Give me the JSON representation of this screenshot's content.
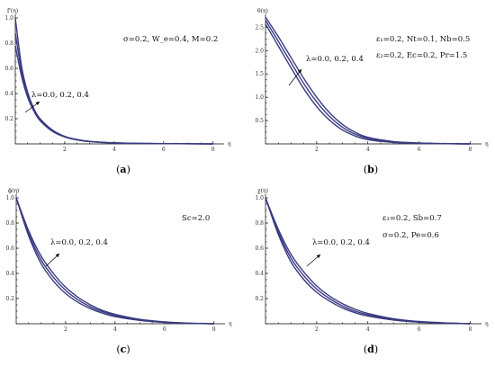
{
  "colors": {
    "curve": "#3a3a82",
    "axis": "#000000"
  },
  "chart_data": [
    {
      "id": "a",
      "type": "line",
      "letter": "a",
      "ylabel": "f'(η)",
      "xlabel": "η",
      "xlim": [
        0,
        8.3
      ],
      "ylim": [
        0,
        1.0
      ],
      "xticks": [
        2,
        4,
        6,
        8
      ],
      "yticks": [
        0.2,
        0.4,
        0.6,
        0.8,
        1.0
      ],
      "ytick_labels": [
        "0.2",
        "0.4",
        "0.6",
        "0.8",
        "1.0"
      ],
      "annotations": [
        "σ=0.2, W_e=0.4, M=0.2"
      ],
      "lambda_label": "λ=0.0, 0.2, 0.4",
      "series": [
        {
          "x": [
            0,
            0.25,
            0.5,
            0.75,
            1,
            1.5,
            2,
            2.5,
            3,
            4,
            5,
            6,
            7,
            8
          ],
          "values": [
            1.0,
            0.62,
            0.41,
            0.28,
            0.2,
            0.11,
            0.06,
            0.035,
            0.02,
            0.008,
            0.004,
            0.002,
            0.001,
            0.0
          ]
        },
        {
          "x": [
            0,
            0.25,
            0.5,
            0.75,
            1,
            1.5,
            2,
            2.5,
            3,
            4,
            5,
            6,
            7,
            8
          ],
          "values": [
            0.88,
            0.58,
            0.39,
            0.27,
            0.19,
            0.105,
            0.058,
            0.033,
            0.019,
            0.008,
            0.004,
            0.002,
            0.001,
            0.0
          ]
        },
        {
          "x": [
            0,
            0.25,
            0.5,
            0.75,
            1,
            1.5,
            2,
            2.5,
            3,
            4,
            5,
            6,
            7,
            8
          ],
          "values": [
            0.78,
            0.54,
            0.37,
            0.26,
            0.185,
            0.1,
            0.055,
            0.031,
            0.018,
            0.007,
            0.003,
            0.0015,
            0.0008,
            0.0
          ]
        }
      ]
    },
    {
      "id": "b",
      "type": "line",
      "letter": "b",
      "ylabel": "θ(η)",
      "xlabel": "η",
      "xlim": [
        0,
        8.3
      ],
      "ylim": [
        0,
        2.7
      ],
      "xticks": [
        2,
        4,
        6,
        8
      ],
      "yticks": [
        0.5,
        1.0,
        1.5,
        2.0,
        2.5
      ],
      "ytick_labels": [
        "0.5",
        "1.0",
        "1.5",
        "2.0",
        "2.5"
      ],
      "annotations": [
        "ε₁=0.2, Nt=0.1, Nb=0.5",
        "ε₂=0.2, Ec=0.2, Pr=1.5"
      ],
      "lambda_label": "λ=0.0, 0.2, 0.4",
      "series": [
        {
          "x": [
            0,
            0.5,
            1,
            1.5,
            2,
            2.5,
            3,
            3.5,
            4,
            5,
            6,
            7,
            8
          ],
          "values": [
            2.72,
            2.3,
            1.85,
            1.4,
            1.0,
            0.67,
            0.42,
            0.25,
            0.14,
            0.05,
            0.02,
            0.006,
            0.0
          ]
        },
        {
          "x": [
            0,
            0.5,
            1,
            1.5,
            2,
            2.5,
            3,
            3.5,
            4,
            5,
            6,
            7,
            8
          ],
          "values": [
            2.65,
            2.2,
            1.74,
            1.29,
            0.9,
            0.59,
            0.36,
            0.21,
            0.12,
            0.04,
            0.015,
            0.005,
            0.0
          ]
        },
        {
          "x": [
            0,
            0.5,
            1,
            1.5,
            2,
            2.5,
            3,
            3.5,
            4,
            5,
            6,
            7,
            8
          ],
          "values": [
            2.57,
            2.1,
            1.63,
            1.18,
            0.8,
            0.51,
            0.3,
            0.17,
            0.09,
            0.03,
            0.01,
            0.004,
            0.0
          ]
        }
      ]
    },
    {
      "id": "c",
      "type": "line",
      "letter": "c",
      "ylabel": "ϕ(η)",
      "xlabel": "η",
      "xlim": [
        0,
        8.3
      ],
      "ylim": [
        0,
        1.0
      ],
      "xticks": [
        2,
        4,
        6,
        8
      ],
      "yticks": [
        0.2,
        0.4,
        0.6,
        0.8,
        1.0
      ],
      "ytick_labels": [
        "0.2",
        "0.4",
        "0.6",
        "0.8",
        "1.0"
      ],
      "annotations": [
        "Sc=2.0"
      ],
      "lambda_label": "λ=0.0, 0.2, 0.4",
      "series": [
        {
          "x": [
            0,
            0.5,
            1,
            1.5,
            2,
            2.5,
            3,
            3.5,
            4,
            5,
            6,
            7,
            8
          ],
          "values": [
            1.0,
            0.74,
            0.54,
            0.4,
            0.29,
            0.21,
            0.15,
            0.105,
            0.075,
            0.035,
            0.015,
            0.005,
            0.0
          ]
        },
        {
          "x": [
            0,
            0.5,
            1,
            1.5,
            2,
            2.5,
            3,
            3.5,
            4,
            5,
            6,
            7,
            8
          ],
          "values": [
            1.0,
            0.72,
            0.51,
            0.37,
            0.265,
            0.19,
            0.135,
            0.095,
            0.066,
            0.03,
            0.012,
            0.004,
            0.0
          ]
        },
        {
          "x": [
            0,
            0.5,
            1,
            1.5,
            2,
            2.5,
            3,
            3.5,
            4,
            5,
            6,
            7,
            8
          ],
          "values": [
            1.0,
            0.7,
            0.48,
            0.34,
            0.24,
            0.17,
            0.12,
            0.083,
            0.057,
            0.026,
            0.01,
            0.003,
            0.0
          ]
        }
      ]
    },
    {
      "id": "d",
      "type": "line",
      "letter": "d",
      "ylabel": "χ(η)",
      "xlabel": "η",
      "xlim": [
        0,
        8.3
      ],
      "ylim": [
        0,
        1.0
      ],
      "xticks": [
        2,
        4,
        6,
        8
      ],
      "yticks": [
        0.2,
        0.4,
        0.6,
        0.8,
        1.0
      ],
      "ytick_labels": [
        "0.2",
        "0.4",
        "0.6",
        "0.8",
        "1.0"
      ],
      "annotations": [
        "ε₃=0.2, Sb=0.7",
        "σ=0.2, Pe=0.6"
      ],
      "lambda_label": "λ=0.0, 0.2, 0.4",
      "series": [
        {
          "x": [
            0,
            0.5,
            1,
            1.5,
            2,
            2.5,
            3,
            3.5,
            4,
            5,
            6,
            7,
            8
          ],
          "values": [
            1.0,
            0.75,
            0.55,
            0.41,
            0.3,
            0.22,
            0.16,
            0.115,
            0.082,
            0.04,
            0.018,
            0.007,
            0.0
          ]
        },
        {
          "x": [
            0,
            0.5,
            1,
            1.5,
            2,
            2.5,
            3,
            3.5,
            4,
            5,
            6,
            7,
            8
          ],
          "values": [
            1.0,
            0.73,
            0.52,
            0.38,
            0.275,
            0.2,
            0.142,
            0.1,
            0.071,
            0.034,
            0.015,
            0.006,
            0.0
          ]
        },
        {
          "x": [
            0,
            0.5,
            1,
            1.5,
            2,
            2.5,
            3,
            3.5,
            4,
            5,
            6,
            7,
            8
          ],
          "values": [
            1.0,
            0.71,
            0.49,
            0.35,
            0.25,
            0.18,
            0.126,
            0.088,
            0.061,
            0.029,
            0.012,
            0.005,
            0.0
          ]
        }
      ]
    }
  ]
}
